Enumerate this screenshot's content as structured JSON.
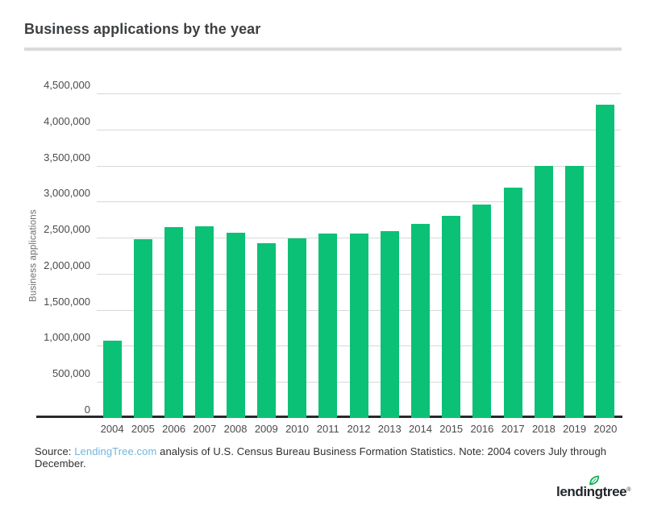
{
  "header": {
    "title": "Business applications by the year"
  },
  "chart_data": {
    "type": "bar",
    "title": "Business applications by the year",
    "xlabel": "",
    "ylabel": "Business applications",
    "categories": [
      "2004",
      "2005",
      "2006",
      "2007",
      "2008",
      "2009",
      "2010",
      "2011",
      "2012",
      "2013",
      "2014",
      "2015",
      "2016",
      "2017",
      "2018",
      "2019",
      "2020"
    ],
    "values": [
      1070000,
      2480000,
      2650000,
      2660000,
      2570000,
      2420000,
      2490000,
      2560000,
      2560000,
      2590000,
      2690000,
      2800000,
      2960000,
      3190000,
      3490000,
      3490000,
      4340000
    ],
    "ylim": [
      0,
      4500000
    ],
    "ytick_interval": 500000,
    "ytick_labels": [
      "0",
      "500,000",
      "1,000,000",
      "1,500,000",
      "2,000,000",
      "2,500,000",
      "3,000,000",
      "3,500,000",
      "4,000,000",
      "4,500,000"
    ],
    "grid": "horizontal-only",
    "legend": "none",
    "bar_color": "#0bc175"
  },
  "footer": {
    "source_prefix": "Source: ",
    "source_link": "LendingTree.com",
    "source_suffix": " analysis of U.S. Census Bureau Business Formation Statistics. Note: 2004 covers July through December.",
    "logo_text": "lendingtree",
    "logo_reg_mark": "®"
  },
  "colors": {
    "bar_green": "#0bc175",
    "link_blue": "#70b5dd",
    "gridline_gray": "#d8d8d8",
    "axis_line_dark": "#27292b",
    "divider_gray": "#dadada",
    "leaf_green": "#16b45a"
  }
}
